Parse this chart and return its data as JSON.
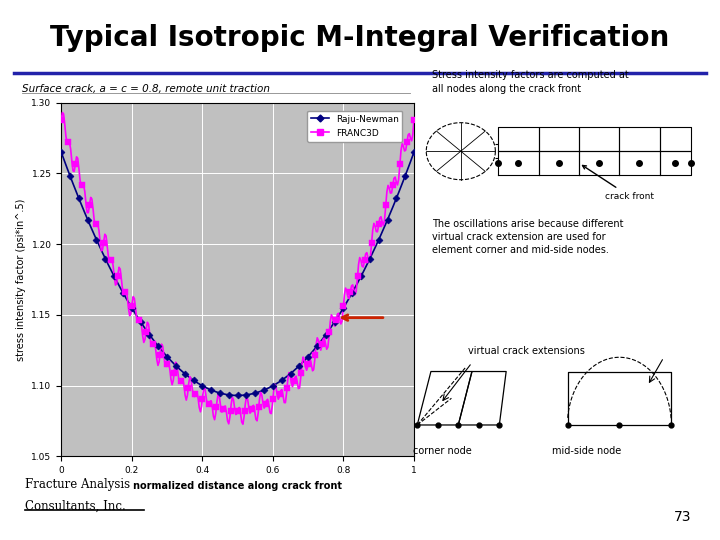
{
  "title": "Typical Isotropic M-Integral Verification",
  "title_fontsize": 20,
  "title_fontweight": "bold",
  "title_color": "#000000",
  "separator_color": "#2222aa",
  "bg_color": "#ffffff",
  "subtitle_text": "Surface crack, a = c = 0.8, remote unit traction",
  "xlabel": "normalized distance along crack front",
  "ylabel": "stress intensity factor (psi*in^.5)",
  "xlim": [
    0,
    1
  ],
  "ylim": [
    1.05,
    1.3
  ],
  "yticks": [
    1.05,
    1.1,
    1.15,
    1.2,
    1.25,
    1.3
  ],
  "xticks": [
    0,
    0.2,
    0.4,
    0.6,
    0.8,
    1
  ],
  "plot_bg": "#c0c0c0",
  "grid_color": "#ffffff",
  "raju_newman_color": "#000080",
  "franc3d_color": "#ff00ff",
  "raju_newman_label": "Raju-Newman",
  "franc3d_label": "FRANC3D",
  "arrow_color": "#cc2200",
  "page_number": "73",
  "company_line1": "Fracture Analysis",
  "company_line2": "Consultants, Inc.",
  "right_text1": "Stress intensity factors are computed at",
  "right_text2": "all nodes along the crack front",
  "right_text3": "crack front",
  "right_text4": "The oscillations arise because different\nvirtual crack extension are used for\nelement corner and mid-side nodes.",
  "right_text5": "virtual crack extensions",
  "right_text6": "corner node",
  "right_text7": "mid-side node"
}
